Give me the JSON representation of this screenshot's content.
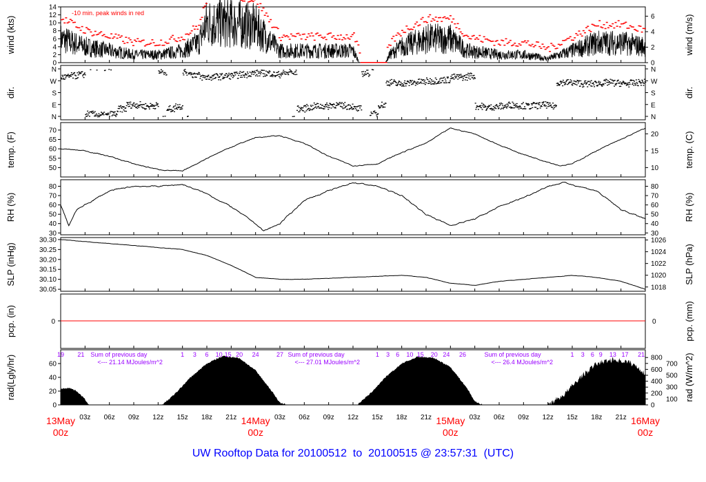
{
  "chart_data": {
    "type": "line",
    "title": "UW Rooftop Data for 20100512  to  20100515 @ 23:57:31  (UTC)",
    "x_range_hours": [
      0,
      72
    ],
    "x_ticks": [
      {
        "h": 3,
        "label": "03z"
      },
      {
        "h": 6,
        "label": "06z"
      },
      {
        "h": 9,
        "label": "09z"
      },
      {
        "h": 12,
        "label": "12z"
      },
      {
        "h": 15,
        "label": "15z"
      },
      {
        "h": 18,
        "label": "18z"
      },
      {
        "h": 21,
        "label": "21z"
      },
      {
        "h": 27,
        "label": "03z"
      },
      {
        "h": 30,
        "label": "06z"
      },
      {
        "h": 33,
        "label": "09z"
      },
      {
        "h": 36,
        "label": "12z"
      },
      {
        "h": 39,
        "label": "15z"
      },
      {
        "h": 42,
        "label": "18z"
      },
      {
        "h": 45,
        "label": "21z"
      },
      {
        "h": 51,
        "label": "03z"
      },
      {
        "h": 54,
        "label": "06z"
      },
      {
        "h": 57,
        "label": "09z"
      },
      {
        "h": 60,
        "label": "12z"
      },
      {
        "h": 63,
        "label": "15z"
      },
      {
        "h": 66,
        "label": "18z"
      },
      {
        "h": 69,
        "label": "21z"
      }
    ],
    "day_labels": [
      {
        "h": 0,
        "date": "13May",
        "time": "00z"
      },
      {
        "h": 24,
        "date": "14May",
        "time": "00z"
      },
      {
        "h": 48,
        "date": "15May",
        "time": "00z"
      },
      {
        "h": 72,
        "date": "16May",
        "time": "00z"
      }
    ],
    "panels": {
      "wind": {
        "ylabel_left": "wind (kts)",
        "ylabel_right": "wind (m/s)",
        "ylim": [
          0,
          14
        ],
        "left_ticks": [
          0,
          2,
          4,
          6,
          8,
          10,
          12,
          14
        ],
        "right_ticks": [
          0,
          2,
          4,
          6
        ],
        "right_factor": 0.5144,
        "annotation": "-10 min. peak winds in red",
        "mean": [
          [
            0,
            6
          ],
          [
            3,
            4
          ],
          [
            6,
            3
          ],
          [
            9,
            2
          ],
          [
            12,
            2
          ],
          [
            15,
            3
          ],
          [
            17,
            5
          ],
          [
            18,
            10
          ],
          [
            21,
            10
          ],
          [
            24,
            9
          ],
          [
            26,
            5
          ],
          [
            27,
            3
          ],
          [
            30,
            3
          ],
          [
            33,
            3
          ],
          [
            36,
            3
          ],
          [
            36.8,
            0
          ],
          [
            40,
            0
          ],
          [
            40.5,
            2
          ],
          [
            42,
            4
          ],
          [
            45,
            6
          ],
          [
            48,
            6
          ],
          [
            50,
            3
          ],
          [
            54,
            2
          ],
          [
            57,
            2
          ],
          [
            60,
            1
          ],
          [
            63,
            3
          ],
          [
            66,
            5
          ],
          [
            69,
            5
          ],
          [
            72,
            4
          ]
        ]
      },
      "dir": {
        "ylabel_left": "dir.",
        "ylabel_right": "dir.",
        "tick_labels": [
          "N",
          "W",
          "S",
          "E",
          "N"
        ],
        "hourly_deg": [
          300,
          310,
          320,
          20,
          15,
          10,
          20,
          60,
          90,
          90,
          80,
          85,
          340,
          60,
          80,
          340,
          320,
          300,
          300,
          305,
          310,
          315,
          320,
          330,
          330,
          330,
          320,
          330,
          340,
          60,
          70,
          80,
          80,
          90,
          85,
          80,
          60,
          330,
          20,
          90,
          260,
          250,
          255,
          260,
          265,
          270,
          275,
          280,
          300,
          300,
          310,
          80,
          70,
          75,
          80,
          90,
          85,
          80,
          85,
          90,
          80,
          260,
          260,
          255,
          250,
          250,
          255,
          260,
          255,
          250,
          255,
          260,
          255
        ]
      },
      "temp": {
        "ylabel_left": "temp. (F)",
        "ylabel_right": "temp. (C)",
        "ylim": [
          45,
          74
        ],
        "left_ticks": [
          50,
          55,
          60,
          65,
          70
        ],
        "right_ticks": [
          10,
          15,
          20
        ],
        "series": [
          [
            0,
            60
          ],
          [
            3,
            59
          ],
          [
            6,
            56
          ],
          [
            9,
            52
          ],
          [
            12,
            49
          ],
          [
            15,
            48
          ],
          [
            18,
            55
          ],
          [
            21,
            61
          ],
          [
            24,
            66
          ],
          [
            27,
            67
          ],
          [
            30,
            63
          ],
          [
            33,
            56
          ],
          [
            36,
            51
          ],
          [
            39,
            52
          ],
          [
            42,
            58
          ],
          [
            45,
            63
          ],
          [
            48,
            71
          ],
          [
            51,
            68
          ],
          [
            54,
            62
          ],
          [
            57,
            57
          ],
          [
            60,
            53
          ],
          [
            61.5,
            51
          ],
          [
            63,
            52
          ],
          [
            66,
            59
          ],
          [
            69,
            65
          ],
          [
            72,
            71
          ]
        ]
      },
      "rh": {
        "ylabel_left": "RH (%)",
        "ylabel_right": "RH (%)",
        "ylim": [
          28,
          87
        ],
        "left_ticks": [
          30,
          40,
          50,
          60,
          70,
          80
        ],
        "right_ticks": [
          30,
          40,
          50,
          60,
          70,
          80
        ],
        "series": [
          [
            0,
            60
          ],
          [
            1,
            38
          ],
          [
            2,
            55
          ],
          [
            3,
            60
          ],
          [
            6,
            75
          ],
          [
            9,
            80
          ],
          [
            12,
            80
          ],
          [
            15,
            82
          ],
          [
            18,
            72
          ],
          [
            21,
            58
          ],
          [
            24,
            40
          ],
          [
            25,
            32
          ],
          [
            27,
            40
          ],
          [
            30,
            65
          ],
          [
            33,
            75
          ],
          [
            36,
            84
          ],
          [
            39,
            80
          ],
          [
            42,
            70
          ],
          [
            45,
            50
          ],
          [
            48,
            38
          ],
          [
            51,
            45
          ],
          [
            54,
            58
          ],
          [
            57,
            68
          ],
          [
            60,
            80
          ],
          [
            62,
            84
          ],
          [
            66,
            75
          ],
          [
            69,
            55
          ],
          [
            72,
            45
          ]
        ]
      },
      "slp": {
        "ylabel_left": "SLP (inHg)",
        "ylabel_right": "SLP (hPa)",
        "ylim": [
          30.04,
          30.31
        ],
        "left_ticks": [
          30.05,
          30.1,
          30.15,
          30.2,
          30.25,
          30.3
        ],
        "right_ticks": [
          1018,
          1020,
          1022,
          1024,
          1026
        ],
        "series": [
          [
            0,
            30.3
          ],
          [
            6,
            30.28
          ],
          [
            12,
            30.26
          ],
          [
            15,
            30.25
          ],
          [
            18,
            30.22
          ],
          [
            21,
            30.17
          ],
          [
            24,
            30.11
          ],
          [
            27,
            30.1
          ],
          [
            30,
            30.1
          ],
          [
            36,
            30.11
          ],
          [
            42,
            30.12
          ],
          [
            45,
            30.11
          ],
          [
            48,
            30.08
          ],
          [
            51,
            30.07
          ],
          [
            54,
            30.09
          ],
          [
            60,
            30.11
          ],
          [
            63,
            30.12
          ],
          [
            66,
            30.11
          ],
          [
            69,
            30.09
          ],
          [
            72,
            30.05
          ]
        ]
      },
      "pcp": {
        "ylabel_left": "pcp. (in)",
        "ylabel_right": "pcp. (mm)",
        "left_ticks": [
          0
        ],
        "right_ticks": [
          0
        ],
        "value": 0
      },
      "rad": {
        "ylabel_left": "rad(Lgly/hr)",
        "ylabel_right": "rad (W/m^2)",
        "ylim": [
          0,
          80
        ],
        "left_ticks": [
          0,
          20,
          40,
          60
        ],
        "right_ticks": [
          0,
          100,
          200,
          300,
          400,
          500,
          600,
          700,
          800
        ],
        "series": [
          [
            0,
            23
          ],
          [
            1,
            25
          ],
          [
            2,
            20
          ],
          [
            3,
            8
          ],
          [
            3.5,
            0
          ],
          [
            12.5,
            0
          ],
          [
            14,
            15
          ],
          [
            16,
            40
          ],
          [
            18,
            60
          ],
          [
            20,
            71
          ],
          [
            22,
            68
          ],
          [
            24,
            50
          ],
          [
            26,
            20
          ],
          [
            27,
            3
          ],
          [
            28,
            0
          ],
          [
            36.5,
            0
          ],
          [
            38,
            15
          ],
          [
            40,
            40
          ],
          [
            42,
            60
          ],
          [
            44,
            70
          ],
          [
            46,
            68
          ],
          [
            48,
            55
          ],
          [
            50,
            25
          ],
          [
            51,
            5
          ],
          [
            52,
            0
          ],
          [
            60,
            0
          ],
          [
            62,
            15
          ],
          [
            64,
            40
          ],
          [
            66,
            60
          ],
          [
            68,
            66
          ],
          [
            70,
            62
          ],
          [
            71,
            55
          ],
          [
            72,
            45
          ]
        ],
        "counter_labels": [
          {
            "h": 0,
            "t": "19"
          },
          {
            "h": 2.5,
            "t": "21"
          },
          {
            "h": 15,
            "t": "1"
          },
          {
            "h": 16.5,
            "t": "3"
          },
          {
            "h": 18,
            "t": "6"
          },
          {
            "h": 19.5,
            "t": "10"
          },
          {
            "h": 20.5,
            "t": "15"
          },
          {
            "h": 22,
            "t": "20"
          },
          {
            "h": 24,
            "t": "24"
          },
          {
            "h": 27,
            "t": "27"
          },
          {
            "h": 39,
            "t": "1"
          },
          {
            "h": 40.3,
            "t": "3"
          },
          {
            "h": 41.5,
            "t": "6"
          },
          {
            "h": 43,
            "t": "10"
          },
          {
            "h": 44.3,
            "t": "15"
          },
          {
            "h": 46,
            "t": "20"
          },
          {
            "h": 47.5,
            "t": "24"
          },
          {
            "h": 49.5,
            "t": "26"
          },
          {
            "h": 63,
            "t": "1"
          },
          {
            "h": 64.3,
            "t": "3"
          },
          {
            "h": 65.5,
            "t": "6"
          },
          {
            "h": 66.5,
            "t": "9"
          },
          {
            "h": 68,
            "t": "13"
          },
          {
            "h": 69.5,
            "t": "17"
          },
          {
            "h": 71.5,
            "t": "21"
          }
        ],
        "daily_sums": [
          {
            "h": 3,
            "line1": "Sum of previous day",
            "line2": "<--- 21.14 MJoules/m^2"
          },
          {
            "h": 27.3,
            "line1": "Sum of previous day",
            "line2": "<--- 27.01 MJoules/m^2"
          },
          {
            "h": 51.5,
            "line1": "Sum of previous day",
            "line2": "<--- 26.4 MJoules/m^2"
          }
        ]
      }
    },
    "colors": {
      "peak": "#ff0000",
      "line": "#000000",
      "day_label": "#ff0000",
      "counter": "#9900ff",
      "title": "#0000ff"
    }
  }
}
